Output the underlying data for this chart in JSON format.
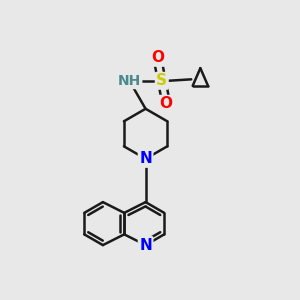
{
  "background_color": "#e8e8e8",
  "bond_color": "#1a1a1a",
  "bond_width": 1.8,
  "atom_colors": {
    "N": "#0000ff",
    "NH": "#4a8a8a",
    "S": "#cccc00",
    "O": "#ff0000",
    "C": "#1a1a1a"
  },
  "font_size": 11,
  "fig_size": [
    3.0,
    3.0
  ],
  "dpi": 100
}
